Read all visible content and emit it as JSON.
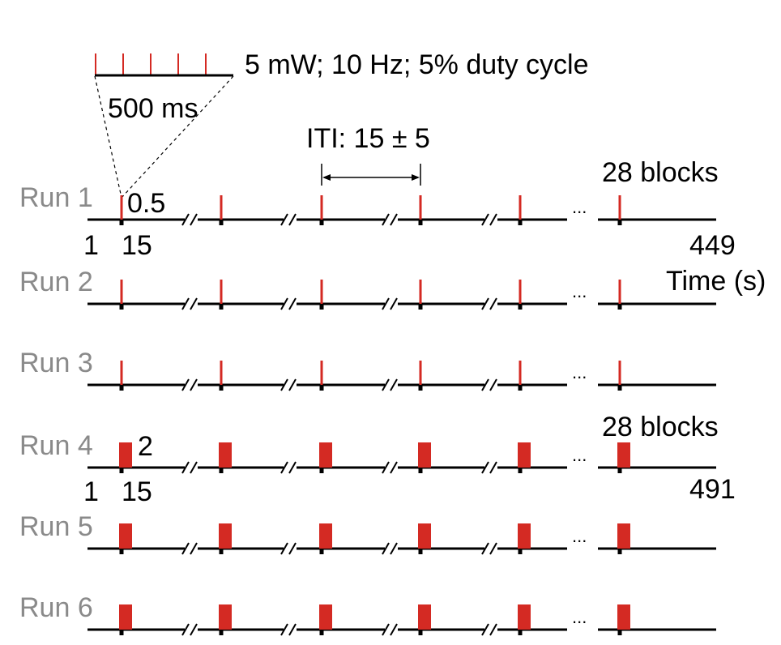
{
  "colors": {
    "pulse": "#d42a23",
    "axis": "#000000",
    "run_label": "#8a8a8a"
  },
  "inset": {
    "params_text": "5 mW; 10 Hz; 5% duty cycle",
    "scale_text": "500 ms",
    "pulse_count": 5
  },
  "iti_text": "ITI: 15 ± 5",
  "blocks_text_a": "28 blocks",
  "blocks_text_b": "28 blocks",
  "ellipsis": "...",
  "time_label": "Time (s)",
  "group1": {
    "pulse_duration_label": "0.5",
    "start_label": "1",
    "onset_label": "15",
    "end_label": "449"
  },
  "group2": {
    "pulse_duration_label": "2",
    "start_label": "1",
    "onset_label": "15",
    "end_label": "491"
  },
  "runs": [
    {
      "label": "Run 1",
      "pulse_type": "short"
    },
    {
      "label": "Run 2",
      "pulse_type": "short"
    },
    {
      "label": "Run 3",
      "pulse_type": "short"
    },
    {
      "label": "Run 4",
      "pulse_type": "wide"
    },
    {
      "label": "Run 5",
      "pulse_type": "wide"
    },
    {
      "label": "Run 6",
      "pulse_type": "wide"
    }
  ]
}
